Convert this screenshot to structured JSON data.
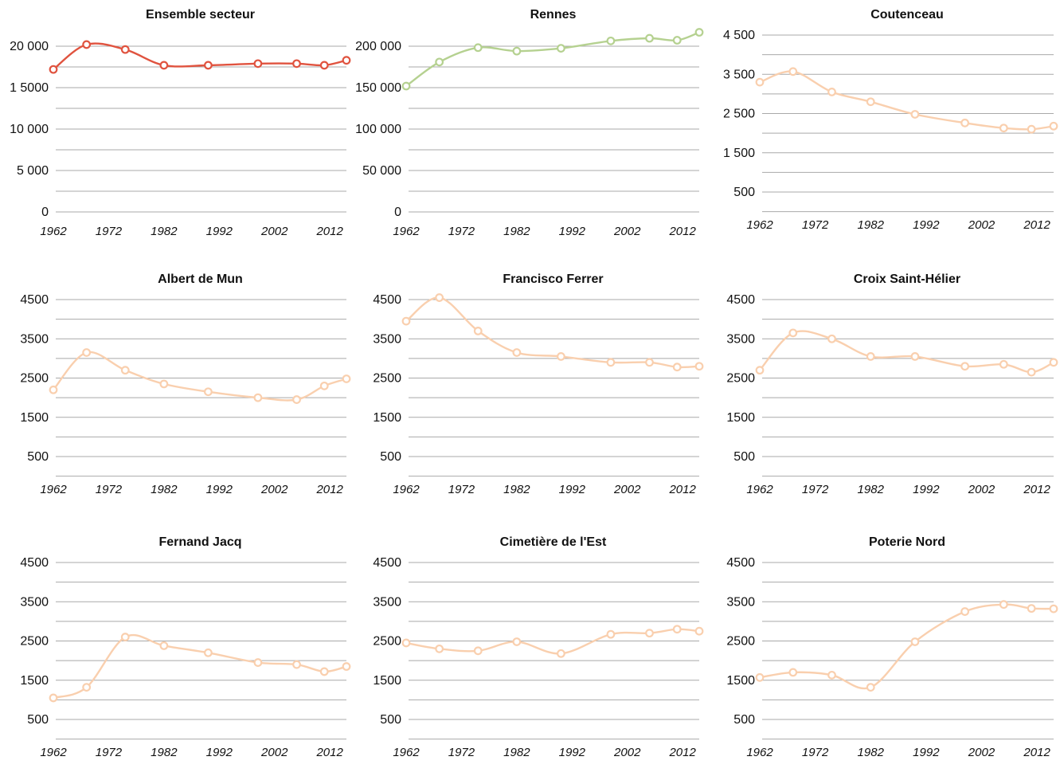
{
  "colors": {
    "total": "#e0533f",
    "rennes": "#b5d190",
    "district": "#f9cfae",
    "gridline": "#a9a9a9"
  },
  "chart_data": [
    {
      "type": "line",
      "title": "Ensemble secteur",
      "color": "#e0533f",
      "x": [
        1962,
        1968,
        1975,
        1982,
        1990,
        1999,
        2006,
        2011,
        2015
      ],
      "values": [
        17200,
        20200,
        19600,
        17700,
        17700,
        17900,
        17900,
        17700,
        18300
      ],
      "ylim": [
        0,
        21000
      ],
      "yticks": [
        0,
        5000,
        10000,
        15000,
        20000
      ],
      "ytick_labels": [
        "0",
        "5 000",
        "10 000",
        "1 5000",
        "20 000"
      ],
      "xticks": [
        1962,
        1972,
        1982,
        1992,
        2002,
        2012
      ],
      "xtick_labels": [
        "1962",
        "1972",
        "1982",
        "1992",
        "2002",
        "2012"
      ],
      "grid": true
    },
    {
      "type": "line",
      "title": "Rennes",
      "color": "#b5d190",
      "x": [
        1962,
        1968,
        1975,
        1982,
        1990,
        1999,
        2006,
        2011,
        2015
      ],
      "values": [
        151900,
        180900,
        198300,
        194100,
        197500,
        206400,
        209600,
        207200,
        216800
      ],
      "ylim": [
        0,
        220000
      ],
      "yticks": [
        0,
        50000,
        100000,
        150000,
        200000
      ],
      "ytick_labels": [
        "0",
        "50 000",
        "100 000",
        "150 000",
        "200 000"
      ],
      "xticks": [
        1962,
        1972,
        1982,
        1992,
        2002,
        2012
      ],
      "xtick_labels": [
        "1962",
        "1972",
        "1982",
        "1992",
        "2002",
        "2012"
      ],
      "grid": true
    },
    {
      "type": "line",
      "title": "Coutenceau",
      "color": "#f9cfae",
      "x": [
        1962,
        1968,
        1975,
        1982,
        1990,
        1999,
        2006,
        2011,
        2015
      ],
      "values": [
        3300,
        3570,
        3050,
        2800,
        2480,
        2260,
        2130,
        2100,
        2180
      ],
      "ylim": [
        0,
        4500
      ],
      "yticks": [
        500,
        1500,
        2500,
        3500,
        4500
      ],
      "ytick_labels": [
        "500",
        "1 500",
        "2 500",
        "3 500",
        "4 500"
      ],
      "xticks": [
        1962,
        1972,
        1982,
        1992,
        2002,
        2012
      ],
      "xtick_labels": [
        "1962",
        "1972",
        "1982",
        "1992",
        "2002",
        "2012"
      ],
      "grid": true
    },
    {
      "type": "line",
      "title": "Albert de Mun",
      "color": "#f9cfae",
      "x": [
        1962,
        1968,
        1975,
        1982,
        1990,
        1999,
        2006,
        2011,
        2015
      ],
      "values": [
        2200,
        3150,
        2700,
        2350,
        2150,
        2000,
        1950,
        2300,
        2480
      ],
      "ylim": [
        0,
        4500
      ],
      "yticks": [
        500,
        1500,
        2500,
        3500,
        4500
      ],
      "ytick_labels": [
        "500",
        "1500",
        "2500",
        "3500",
        "4500"
      ],
      "xticks": [
        1962,
        1972,
        1982,
        1992,
        2002,
        2012
      ],
      "xtick_labels": [
        "1962",
        "1972",
        "1982",
        "1992",
        "2002",
        "2012"
      ],
      "grid": true
    },
    {
      "type": "line",
      "title": "Francisco Ferrer",
      "color": "#f9cfae",
      "x": [
        1962,
        1968,
        1975,
        1982,
        1990,
        1999,
        2006,
        2011,
        2015
      ],
      "values": [
        3950,
        4550,
        3700,
        3150,
        3050,
        2900,
        2900,
        2780,
        2800
      ],
      "ylim": [
        0,
        4500
      ],
      "yticks": [
        500,
        1500,
        2500,
        3500,
        4500
      ],
      "ytick_labels": [
        "500",
        "1500",
        "2500",
        "3500",
        "4500"
      ],
      "xticks": [
        1962,
        1972,
        1982,
        1992,
        2002,
        2012
      ],
      "xtick_labels": [
        "1962",
        "1972",
        "1982",
        "1992",
        "2002",
        "2012"
      ],
      "grid": true
    },
    {
      "type": "line",
      "title": "Croix Saint-Hélier",
      "color": "#f9cfae",
      "x": [
        1962,
        1968,
        1975,
        1982,
        1990,
        1999,
        2006,
        2011,
        2015
      ],
      "values": [
        2700,
        3650,
        3500,
        3050,
        3050,
        2800,
        2850,
        2650,
        2900
      ],
      "ylim": [
        0,
        4500
      ],
      "yticks": [
        500,
        1500,
        2500,
        3500,
        4500
      ],
      "ytick_labels": [
        "500",
        "1500",
        "2500",
        "3500",
        "4500"
      ],
      "xticks": [
        1962,
        1972,
        1982,
        1992,
        2002,
        2012
      ],
      "xtick_labels": [
        "1962",
        "1972",
        "1982",
        "1992",
        "2002",
        "2012"
      ],
      "grid": true
    },
    {
      "type": "line",
      "title": "Fernand Jacq",
      "color": "#f9cfae",
      "x": [
        1962,
        1968,
        1975,
        1982,
        1990,
        1999,
        2006,
        2011,
        2015
      ],
      "values": [
        1050,
        1320,
        2600,
        2380,
        2200,
        1950,
        1900,
        1720,
        1850
      ],
      "ylim": [
        0,
        4500
      ],
      "yticks": [
        500,
        1500,
        2500,
        3500,
        4500
      ],
      "ytick_labels": [
        "500",
        "1500",
        "2500",
        "3500",
        "4500"
      ],
      "xticks": [
        1962,
        1972,
        1982,
        1992,
        2002,
        2012
      ],
      "xtick_labels": [
        "1962",
        "1972",
        "1982",
        "1992",
        "2002",
        "2012"
      ],
      "grid": true
    },
    {
      "type": "line",
      "title": "Cimetière de l'Est",
      "color": "#f9cfae",
      "x": [
        1962,
        1968,
        1975,
        1982,
        1990,
        1999,
        2006,
        2011,
        2015
      ],
      "values": [
        2450,
        2300,
        2250,
        2480,
        2180,
        2670,
        2700,
        2800,
        2750
      ],
      "ylim": [
        0,
        4500
      ],
      "yticks": [
        500,
        1500,
        2500,
        3500,
        4500
      ],
      "ytick_labels": [
        "500",
        "1500",
        "2500",
        "3500",
        "4500"
      ],
      "xticks": [
        1962,
        1972,
        1982,
        1992,
        2002,
        2012
      ],
      "xtick_labels": [
        "1962",
        "1972",
        "1982",
        "1992",
        "2002",
        "2012"
      ],
      "grid": true
    },
    {
      "type": "line",
      "title": "Poterie Nord",
      "color": "#f9cfae",
      "x": [
        1962,
        1968,
        1975,
        1982,
        1990,
        1999,
        2006,
        2011,
        2015
      ],
      "values": [
        1570,
        1700,
        1630,
        1320,
        2480,
        3250,
        3430,
        3330,
        3320
      ],
      "ylim": [
        0,
        4500
      ],
      "yticks": [
        500,
        1500,
        2500,
        3500,
        4500
      ],
      "ytick_labels": [
        "500",
        "1500",
        "2500",
        "3500",
        "4500"
      ],
      "xticks": [
        1962,
        1972,
        1982,
        1992,
        2002,
        2012
      ],
      "xtick_labels": [
        "1962",
        "1972",
        "1982",
        "1992",
        "2002",
        "2012"
      ],
      "grid": true
    }
  ]
}
